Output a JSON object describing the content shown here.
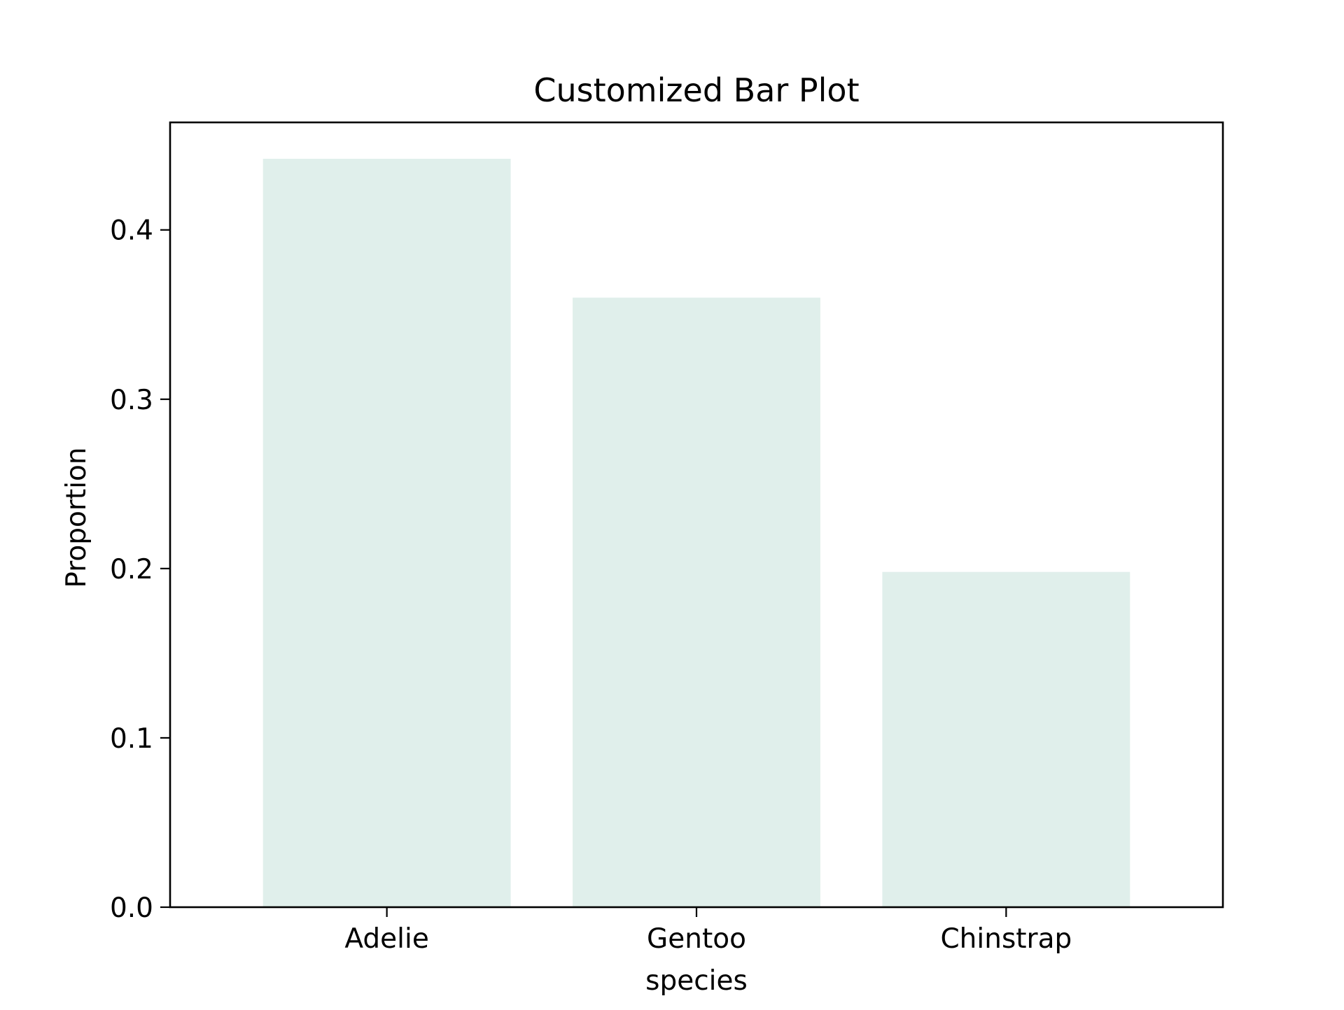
{
  "chart_data": {
    "type": "bar",
    "title": "Customized Bar Plot",
    "xlabel": "species",
    "ylabel": "Proportion",
    "categories": [
      "Adelie",
      "Gentoo",
      "Chinstrap"
    ],
    "values": [
      0.442,
      0.36,
      0.198
    ],
    "ylim": [
      0,
      0.4635
    ],
    "yticks": [
      0.0,
      0.1,
      0.2,
      0.3,
      0.4
    ],
    "ytick_labels": [
      "0.0",
      "0.1",
      "0.2",
      "0.3",
      "0.4"
    ],
    "grid": false,
    "bar_color": "#e0efeb",
    "axis_color": "#000000"
  }
}
